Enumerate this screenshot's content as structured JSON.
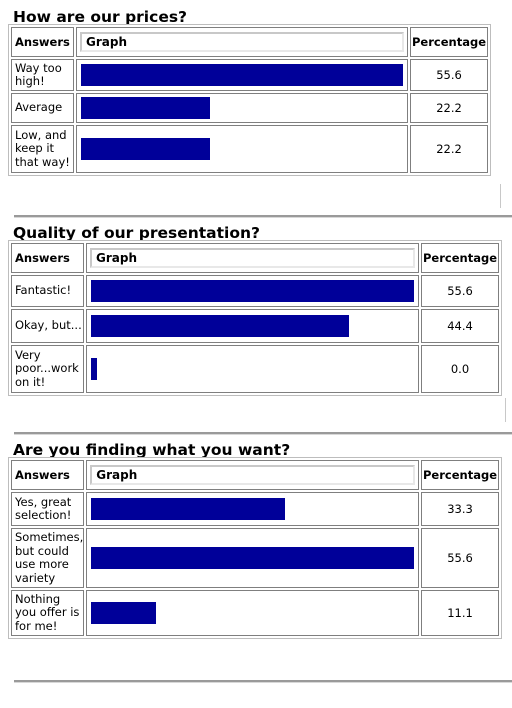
{
  "headers": {
    "answers": "Answers",
    "graph": "Graph",
    "percentage": "Percentage"
  },
  "colors": {
    "bar": "#000099",
    "rule": "#9a9a9a"
  },
  "surveys": [
    {
      "title": "How are our prices?",
      "answers": [
        "Way too high!",
        "Average",
        "Low, and keep it that way!"
      ],
      "percentages": [
        "55.6",
        "22.2",
        "22.2"
      ]
    },
    {
      "title": "Quality of our presentation?",
      "answers": [
        "Fantastic!",
        "Okay, but...",
        "Very poor...work on it!"
      ],
      "percentages": [
        "55.6",
        "44.4",
        "0.0"
      ]
    },
    {
      "title": "Are you finding what you want?",
      "answers": [
        "Yes, great selection!",
        "Sometimes, but could use more variety",
        "Nothing you offer is for me!"
      ],
      "percentages": [
        "33.3",
        "55.6",
        "11.1"
      ]
    }
  ],
  "chart_data": [
    {
      "type": "bar",
      "title": "How are our prices?",
      "categories": [
        "Way too high!",
        "Average",
        "Low, and keep it that way!"
      ],
      "values": [
        55.6,
        22.2,
        22.2
      ],
      "xlabel": "",
      "ylabel": "Percentage"
    },
    {
      "type": "bar",
      "title": "Quality of our presentation?",
      "categories": [
        "Fantastic!",
        "Okay, but...",
        "Very poor...work on it!"
      ],
      "values": [
        55.6,
        44.4,
        0.0
      ],
      "xlabel": "",
      "ylabel": "Percentage"
    },
    {
      "type": "bar",
      "title": "Are you finding what you want?",
      "categories": [
        "Yes, great selection!",
        "Sometimes, but could use more variety",
        "Nothing you offer is for me!"
      ],
      "values": [
        33.3,
        55.6,
        11.1
      ],
      "xlabel": "",
      "ylabel": "Percentage"
    }
  ]
}
